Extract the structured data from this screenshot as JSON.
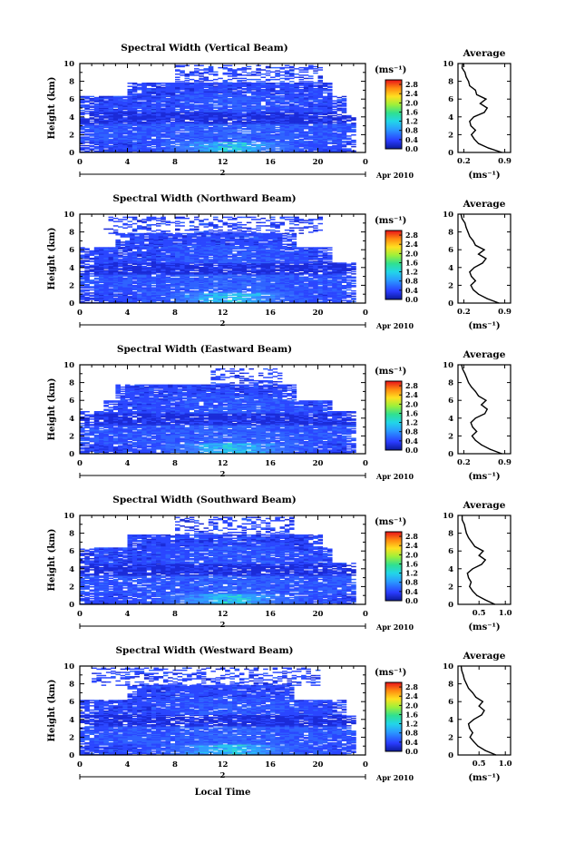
{
  "chart_data": [
    {
      "type": "heatmap",
      "title": "Spectral Width (Vertical Beam)",
      "ylabel": "Height (km)",
      "xlabel": "",
      "x_ticks": [
        "0",
        "4",
        "8",
        "12",
        "16",
        "20",
        "0"
      ],
      "y_ticks": [
        "0",
        "2",
        "4",
        "6",
        "8",
        "10"
      ],
      "xlim": [
        0,
        24
      ],
      "ylim": [
        0,
        10
      ],
      "date_marker": "2",
      "date_label": "Apr 2010",
      "colorbar": {
        "unit": "(ms⁻¹)",
        "ticks": [
          "0.0",
          "0.4",
          "0.8",
          "1.2",
          "1.6",
          "2.0",
          "2.4",
          "2.8"
        ],
        "range": [
          0.0,
          3.0
        ]
      },
      "profile": {
        "title": "Average",
        "xlabel": "(ms⁻¹)",
        "x_ticks": [
          "0.2",
          "0.9"
        ],
        "x_tick_values": [
          0.2,
          0.9
        ],
        "xlim": [
          0.1,
          1.0
        ],
        "y_ticks": [
          "0",
          "2",
          "4",
          "6",
          "8",
          "10"
        ],
        "ylim": [
          0,
          10
        ],
        "heights": [
          0,
          0.5,
          1,
          1.5,
          2,
          2.5,
          3,
          3.5,
          4,
          4.5,
          5,
          5.5,
          6,
          6.5,
          7,
          7.5,
          8,
          8.5,
          9,
          9.5,
          10
        ],
        "values": [
          0.85,
          0.62,
          0.45,
          0.38,
          0.33,
          0.4,
          0.32,
          0.3,
          0.37,
          0.55,
          0.6,
          0.48,
          0.58,
          0.42,
          0.4,
          0.3,
          0.28,
          0.24,
          0.22,
          0.17,
          0.18
        ]
      },
      "layers": [
        {
          "h": [
            0,
            4.2
          ],
          "t": [
            0,
            23
          ]
        },
        {
          "h": [
            4.2,
            6.3
          ],
          "t": [
            0,
            22
          ]
        },
        {
          "h": [
            6.3,
            7.8
          ],
          "t": [
            4,
            21
          ]
        },
        {
          "h": [
            7.8,
            9.8
          ],
          "t": [
            8,
            20
          ],
          "sparse": true
        }
      ]
    },
    {
      "type": "heatmap",
      "title": "Spectral Width (Northward Beam)",
      "ylabel": "Height (km)",
      "xlabel": "",
      "x_ticks": [
        "0",
        "4",
        "8",
        "12",
        "16",
        "20",
        "0"
      ],
      "y_ticks": [
        "0",
        "2",
        "4",
        "6",
        "8",
        "10"
      ],
      "xlim": [
        0,
        24
      ],
      "ylim": [
        0,
        10
      ],
      "date_marker": "2",
      "date_label": "Apr 2010",
      "colorbar": {
        "unit": "(ms⁻¹)",
        "ticks": [
          "0.0",
          "0.4",
          "0.8",
          "1.2",
          "1.6",
          "2.0",
          "2.4",
          "2.8"
        ],
        "range": [
          0.0,
          3.0
        ]
      },
      "profile": {
        "title": "Average",
        "xlabel": "(ms⁻¹)",
        "x_ticks": [
          "0.2",
          "0.9"
        ],
        "x_tick_values": [
          0.2,
          0.9
        ],
        "xlim": [
          0.1,
          1.0
        ],
        "y_ticks": [
          "0",
          "2",
          "4",
          "6",
          "8",
          "10"
        ],
        "ylim": [
          0,
          10
        ],
        "heights": [
          0,
          0.5,
          1,
          1.5,
          2,
          2.5,
          3,
          3.5,
          4,
          4.5,
          5,
          5.5,
          6,
          6.5,
          7,
          7.5,
          8,
          8.5,
          9,
          9.5,
          10
        ],
        "values": [
          0.8,
          0.6,
          0.45,
          0.36,
          0.32,
          0.4,
          0.33,
          0.3,
          0.38,
          0.52,
          0.58,
          0.45,
          0.55,
          0.4,
          0.36,
          0.3,
          0.27,
          0.24,
          0.22,
          0.17,
          0.15
        ]
      },
      "layers": [
        {
          "h": [
            0,
            4.5
          ],
          "t": [
            0,
            23
          ]
        },
        {
          "h": [
            4.5,
            6.2
          ],
          "t": [
            0,
            21
          ]
        },
        {
          "h": [
            6.2,
            7.8
          ],
          "t": [
            3,
            18
          ]
        },
        {
          "h": [
            7.8,
            9.6
          ],
          "t": [
            2,
            20
          ],
          "sparse": true
        }
      ]
    },
    {
      "type": "heatmap",
      "title": "Spectral Width (Eastward Beam)",
      "ylabel": "Height (km)",
      "xlabel": "",
      "x_ticks": [
        "0",
        "4",
        "8",
        "12",
        "16",
        "20",
        "0"
      ],
      "y_ticks": [
        "0",
        "2",
        "4",
        "6",
        "8",
        "10"
      ],
      "xlim": [
        0,
        24
      ],
      "ylim": [
        0,
        10
      ],
      "date_marker": "2",
      "date_label": "Apr 2010",
      "colorbar": {
        "unit": "(ms⁻¹)",
        "ticks": [
          "0.0",
          "0.4",
          "0.8",
          "1.2",
          "1.6",
          "2.0",
          "2.4",
          "2.8"
        ],
        "range": [
          0.0,
          3.0
        ]
      },
      "profile": {
        "title": "Average",
        "xlabel": "(ms⁻¹)",
        "x_ticks": [
          "0.2",
          "0.9"
        ],
        "x_tick_values": [
          0.2,
          0.9
        ],
        "xlim": [
          0.1,
          1.0
        ],
        "y_ticks": [
          "0",
          "2",
          "4",
          "6",
          "8",
          "10"
        ],
        "ylim": [
          0,
          10
        ],
        "heights": [
          0,
          0.5,
          1,
          1.5,
          2,
          2.5,
          3,
          3.5,
          4,
          4.5,
          5,
          5.5,
          6,
          6.5,
          7,
          7.5,
          8,
          8.5,
          9,
          9.5,
          10
        ],
        "values": [
          0.85,
          0.65,
          0.5,
          0.4,
          0.34,
          0.42,
          0.35,
          0.32,
          0.4,
          0.56,
          0.6,
          0.5,
          0.58,
          0.45,
          0.4,
          0.33,
          0.28,
          0.25,
          0.22,
          0.18,
          0.16
        ]
      },
      "layers": [
        {
          "h": [
            0,
            4.8
          ],
          "t": [
            0,
            23
          ]
        },
        {
          "h": [
            4.8,
            6.0
          ],
          "t": [
            2,
            21
          ]
        },
        {
          "h": [
            6.0,
            7.8
          ],
          "t": [
            3,
            18
          ]
        },
        {
          "h": [
            7.8,
            9.5
          ],
          "t": [
            11,
            17
          ],
          "sparse": true
        }
      ]
    },
    {
      "type": "heatmap",
      "title": "Spectral Width (Southward Beam)",
      "ylabel": "Height (km)",
      "xlabel": "",
      "x_ticks": [
        "0",
        "4",
        "8",
        "12",
        "16",
        "20",
        "0"
      ],
      "y_ticks": [
        "0",
        "2",
        "4",
        "6",
        "8",
        "10"
      ],
      "xlim": [
        0,
        24
      ],
      "ylim": [
        0,
        10
      ],
      "date_marker": "2",
      "date_label": "Apr 2010",
      "colorbar": {
        "unit": "(ms⁻¹)",
        "ticks": [
          "0.0",
          "0.4",
          "0.8",
          "1.2",
          "1.6",
          "2.0",
          "2.4",
          "2.8"
        ],
        "range": [
          0.0,
          3.0
        ]
      },
      "profile": {
        "title": "Average",
        "xlabel": "(ms⁻¹)",
        "x_ticks": [
          "0.5",
          "1.0"
        ],
        "x_tick_values": [
          0.5,
          1.0
        ],
        "xlim": [
          0.1,
          1.1
        ],
        "y_ticks": [
          "0",
          "2",
          "4",
          "6",
          "8",
          "10"
        ],
        "ylim": [
          0,
          10
        ],
        "heights": [
          0,
          0.5,
          1,
          1.5,
          2,
          2.5,
          3,
          3.5,
          4,
          4.5,
          5,
          5.5,
          6,
          6.5,
          7,
          7.5,
          8,
          8.5,
          9,
          9.5,
          10
        ],
        "values": [
          0.8,
          0.62,
          0.46,
          0.38,
          0.32,
          0.35,
          0.3,
          0.28,
          0.38,
          0.55,
          0.62,
          0.5,
          0.58,
          0.42,
          0.36,
          0.3,
          0.26,
          0.24,
          0.22,
          0.18,
          0.18
        ]
      },
      "layers": [
        {
          "h": [
            0,
            4.6
          ],
          "t": [
            0,
            23
          ]
        },
        {
          "h": [
            4.6,
            6.3
          ],
          "t": [
            0,
            21
          ]
        },
        {
          "h": [
            6.3,
            7.8
          ],
          "t": [
            4,
            20
          ]
        },
        {
          "h": [
            7.8,
            9.8
          ],
          "t": [
            8,
            18
          ],
          "sparse": true
        }
      ]
    },
    {
      "type": "heatmap",
      "title": "Spectral Width (Westward Beam)",
      "ylabel": "Height (km)",
      "xlabel": "Local Time",
      "x_ticks": [
        "0",
        "4",
        "8",
        "12",
        "16",
        "20",
        "0"
      ],
      "y_ticks": [
        "0",
        "2",
        "4",
        "6",
        "8",
        "10"
      ],
      "xlim": [
        0,
        24
      ],
      "ylim": [
        0,
        10
      ],
      "date_marker": "2",
      "date_label": "Apr 2010",
      "colorbar": {
        "unit": "(ms⁻¹)",
        "ticks": [
          "0.0",
          "0.4",
          "0.8",
          "1.2",
          "1.6",
          "2.0",
          "2.4",
          "2.8"
        ],
        "range": [
          0.0,
          3.0
        ]
      },
      "profile": {
        "title": "Average",
        "xlabel": "(ms⁻¹)",
        "x_ticks": [
          "0.5",
          "1.0"
        ],
        "x_tick_values": [
          0.5,
          1.0
        ],
        "xlim": [
          0.1,
          1.1
        ],
        "y_ticks": [
          "0",
          "2",
          "4",
          "6",
          "8",
          "10"
        ],
        "ylim": [
          0,
          10
        ],
        "heights": [
          0,
          0.5,
          1,
          1.5,
          2,
          2.5,
          3,
          3.5,
          4,
          4.5,
          5,
          5.5,
          6,
          6.5,
          7,
          7.5,
          8,
          8.5,
          9,
          9.5,
          10
        ],
        "values": [
          0.82,
          0.62,
          0.48,
          0.4,
          0.33,
          0.38,
          0.32,
          0.3,
          0.4,
          0.55,
          0.6,
          0.5,
          0.57,
          0.44,
          0.38,
          0.3,
          0.26,
          0.22,
          0.2,
          0.17,
          0.16
        ]
      },
      "layers": [
        {
          "h": [
            0,
            4.4
          ],
          "t": [
            0,
            23
          ]
        },
        {
          "h": [
            4.4,
            6.2
          ],
          "t": [
            0,
            22
          ]
        },
        {
          "h": [
            6.2,
            7.8
          ],
          "t": [
            4,
            18
          ]
        },
        {
          "h": [
            7.8,
            9.8
          ],
          "t": [
            1,
            20
          ],
          "sparse": true
        }
      ]
    }
  ]
}
